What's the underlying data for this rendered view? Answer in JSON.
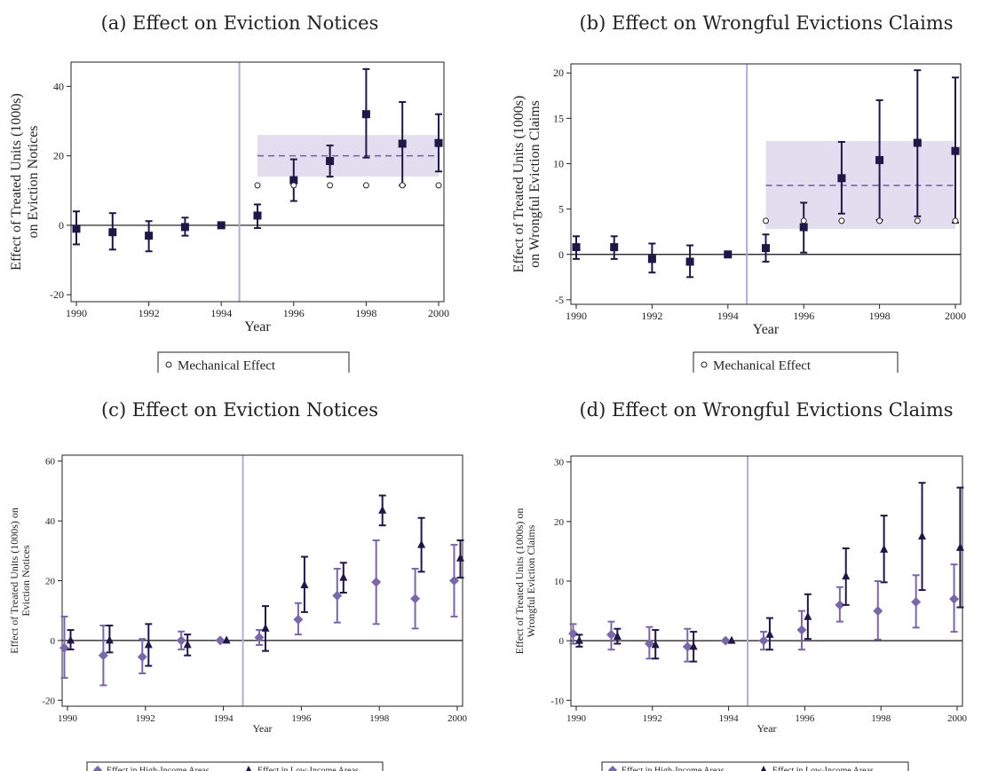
{
  "colors": {
    "navy": "#1f1746",
    "purple": "#7a67a8",
    "band": "#e2def0",
    "dash": "#6e5fa6",
    "vline": "#b4acd3"
  },
  "chart_data": [
    {
      "type": "scatter",
      "title": "(a) Effect on Eviction Notices",
      "xlabel": "Year",
      "ylabel": [
        "Effect of Treated Units (1000s)",
        "on Eviction Notices"
      ],
      "xlim": [
        1990,
        2000
      ],
      "ylim": [
        -22,
        47
      ],
      "yticks": [
        -20,
        0,
        20,
        40
      ],
      "xticks": [
        1990,
        1992,
        1994,
        1996,
        1998,
        2000
      ],
      "treatment_line": 1994.5,
      "band": {
        "x0": 1995,
        "x1": 2000,
        "lo": 14,
        "hi": 26,
        "mean": 20
      },
      "legend": [
        {
          "marker": "circle",
          "label": "Mechanical Effect"
        }
      ],
      "series": [
        {
          "marker": "square",
          "color": "navy",
          "x": [
            1990,
            1991,
            1992,
            1993,
            1994,
            1995,
            1996,
            1997,
            1998,
            1999,
            2000
          ],
          "y": [
            -1,
            -2,
            -3,
            -0.5,
            0,
            2.8,
            13,
            18.5,
            32,
            23.5,
            23.7
          ],
          "lo": [
            -5.5,
            -7,
            -7.5,
            -3,
            0,
            -0.8,
            7,
            14,
            19.5,
            11.5,
            15.5
          ],
          "hi": [
            4,
            3.5,
            1.2,
            2.2,
            0,
            6,
            19,
            23,
            45,
            35.5,
            32
          ]
        },
        {
          "marker": "circle",
          "x": [
            1995,
            1996,
            1997,
            1998,
            1999,
            2000
          ],
          "y": [
            11.5,
            11.5,
            11.5,
            11.5,
            11.5,
            11.5
          ]
        }
      ]
    },
    {
      "type": "scatter",
      "title": "(b) Effect on Wrongful Evictions Claims",
      "xlabel": "Year",
      "ylabel": [
        "Effect of Treated Units (1000s)",
        "on Wrongful Eviction Claims"
      ],
      "xlim": [
        1990,
        2000
      ],
      "ylim": [
        -5.5,
        21
      ],
      "yticks": [
        -5,
        0,
        5,
        10,
        15,
        20
      ],
      "xticks": [
        1990,
        1992,
        1994,
        1996,
        1998,
        2000
      ],
      "treatment_line": 1994.5,
      "band": {
        "x0": 1995,
        "x1": 2000,
        "lo": 2.8,
        "hi": 12.5,
        "mean": 7.6
      },
      "legend": [
        {
          "marker": "circle",
          "label": "Mechanical Effect"
        }
      ],
      "series": [
        {
          "marker": "square",
          "color": "navy",
          "x": [
            1990,
            1991,
            1992,
            1993,
            1994,
            1995,
            1996,
            1997,
            1998,
            1999,
            2000
          ],
          "y": [
            0.8,
            0.8,
            -0.5,
            -0.8,
            0,
            0.7,
            3,
            8.4,
            10.4,
            12.3,
            11.4
          ],
          "lo": [
            -0.5,
            -0.5,
            -2,
            -2.5,
            0,
            -0.8,
            0.2,
            4.5,
            3.8,
            4.2,
            3.5
          ],
          "hi": [
            2,
            2,
            1.2,
            1,
            0,
            2.2,
            5.7,
            12.4,
            17,
            20.3,
            19.5
          ]
        },
        {
          "marker": "circle",
          "x": [
            1995,
            1996,
            1997,
            1998,
            1999,
            2000
          ],
          "y": [
            3.7,
            3.7,
            3.7,
            3.7,
            3.7,
            3.7
          ]
        }
      ]
    },
    {
      "type": "scatter",
      "title": "(c) Effect on Eviction Notices",
      "xlabel": "Year",
      "ylabel": [
        "Effect of Treated Units (1000s) on",
        "Eviction Notices"
      ],
      "xlim": [
        1990,
        2000
      ],
      "ylim": [
        -22,
        62
      ],
      "yticks": [
        -20,
        0,
        20,
        40,
        60
      ],
      "xticks": [
        1990,
        1992,
        1994,
        1996,
        1998,
        2000
      ],
      "treatment_line": 1994.5,
      "legend": [
        {
          "marker": "diamond",
          "color": "purple",
          "label": "Effect in High-Income Areas"
        },
        {
          "marker": "triangle",
          "color": "navy",
          "label": "Effect in Low-Income Areas"
        }
      ],
      "series": [
        {
          "marker": "diamond",
          "color": "purple",
          "dx": -0.08,
          "x": [
            1990,
            1991,
            1992,
            1993,
            1994,
            1995,
            1996,
            1997,
            1998,
            1999,
            2000
          ],
          "y": [
            -2.5,
            -5,
            -5.5,
            0,
            0,
            1,
            7,
            15,
            19.5,
            14,
            20
          ],
          "lo": [
            -12.5,
            -15,
            -11,
            -3,
            0,
            -1.5,
            2,
            6,
            5.5,
            4,
            8
          ],
          "hi": [
            8,
            5,
            0.5,
            3,
            0,
            3.5,
            12.5,
            24,
            33.5,
            24,
            32
          ]
        },
        {
          "marker": "triangle",
          "color": "navy",
          "dx": 0.08,
          "x": [
            1990,
            1991,
            1992,
            1993,
            1994,
            1995,
            1996,
            1997,
            1998,
            1999,
            2000
          ],
          "y": [
            0,
            0,
            -1.5,
            -1.5,
            0,
            4,
            18.5,
            21,
            43.5,
            32,
            27.5
          ],
          "lo": [
            -3,
            -4,
            -8.5,
            -5,
            0,
            -3.5,
            9.5,
            16,
            38.5,
            23,
            21
          ],
          "hi": [
            3.5,
            5,
            5.5,
            2,
            0,
            11.5,
            28,
            26,
            48.5,
            41,
            33.5
          ]
        }
      ]
    },
    {
      "type": "scatter",
      "title": "(d) Effect on Wrongful Evictions Claims",
      "xlabel": "Year",
      "ylabel": [
        "Effect of Treated Units (1000s) on",
        "Wrongful Eviction Claims"
      ],
      "xlim": [
        1990,
        2000
      ],
      "ylim": [
        -11,
        31
      ],
      "yticks": [
        -10,
        0,
        10,
        20,
        30
      ],
      "xticks": [
        1990,
        1992,
        1994,
        1996,
        1998,
        2000
      ],
      "treatment_line": 1994.5,
      "legend": [
        {
          "marker": "diamond",
          "color": "purple",
          "label": "Effect in High-Income Areas"
        },
        {
          "marker": "triangle",
          "color": "navy",
          "label": "Effect in Low-Income Areas"
        }
      ],
      "series": [
        {
          "marker": "diamond",
          "color": "purple",
          "dx": -0.08,
          "x": [
            1990,
            1991,
            1992,
            1993,
            1994,
            1995,
            1996,
            1997,
            1998,
            1999,
            2000
          ],
          "y": [
            1.2,
            1,
            -0.5,
            -1,
            0,
            0,
            1.8,
            6,
            5,
            6.5,
            7
          ],
          "lo": [
            -0.5,
            -1.5,
            -3,
            -3.5,
            0,
            -1.5,
            -1.5,
            3.2,
            0.2,
            2.2,
            1.5
          ],
          "hi": [
            2.8,
            3.2,
            2.3,
            2,
            0,
            1.5,
            5,
            9,
            10,
            11,
            12.8
          ]
        },
        {
          "marker": "triangle",
          "color": "navy",
          "dx": 0.08,
          "x": [
            1990,
            1991,
            1992,
            1993,
            1994,
            1995,
            1996,
            1997,
            1998,
            1999,
            2000
          ],
          "y": [
            0,
            0.7,
            -0.7,
            -1,
            0,
            1,
            4,
            10.8,
            15.3,
            17.5,
            15.6
          ],
          "lo": [
            -1,
            -0.5,
            -3,
            -3.5,
            0,
            -1.5,
            0.3,
            6,
            9.8,
            8.5,
            5.6
          ],
          "hi": [
            1,
            2,
            1.8,
            1.5,
            0,
            3.8,
            7.8,
            15.5,
            21,
            26.5,
            25.7
          ]
        }
      ]
    }
  ]
}
